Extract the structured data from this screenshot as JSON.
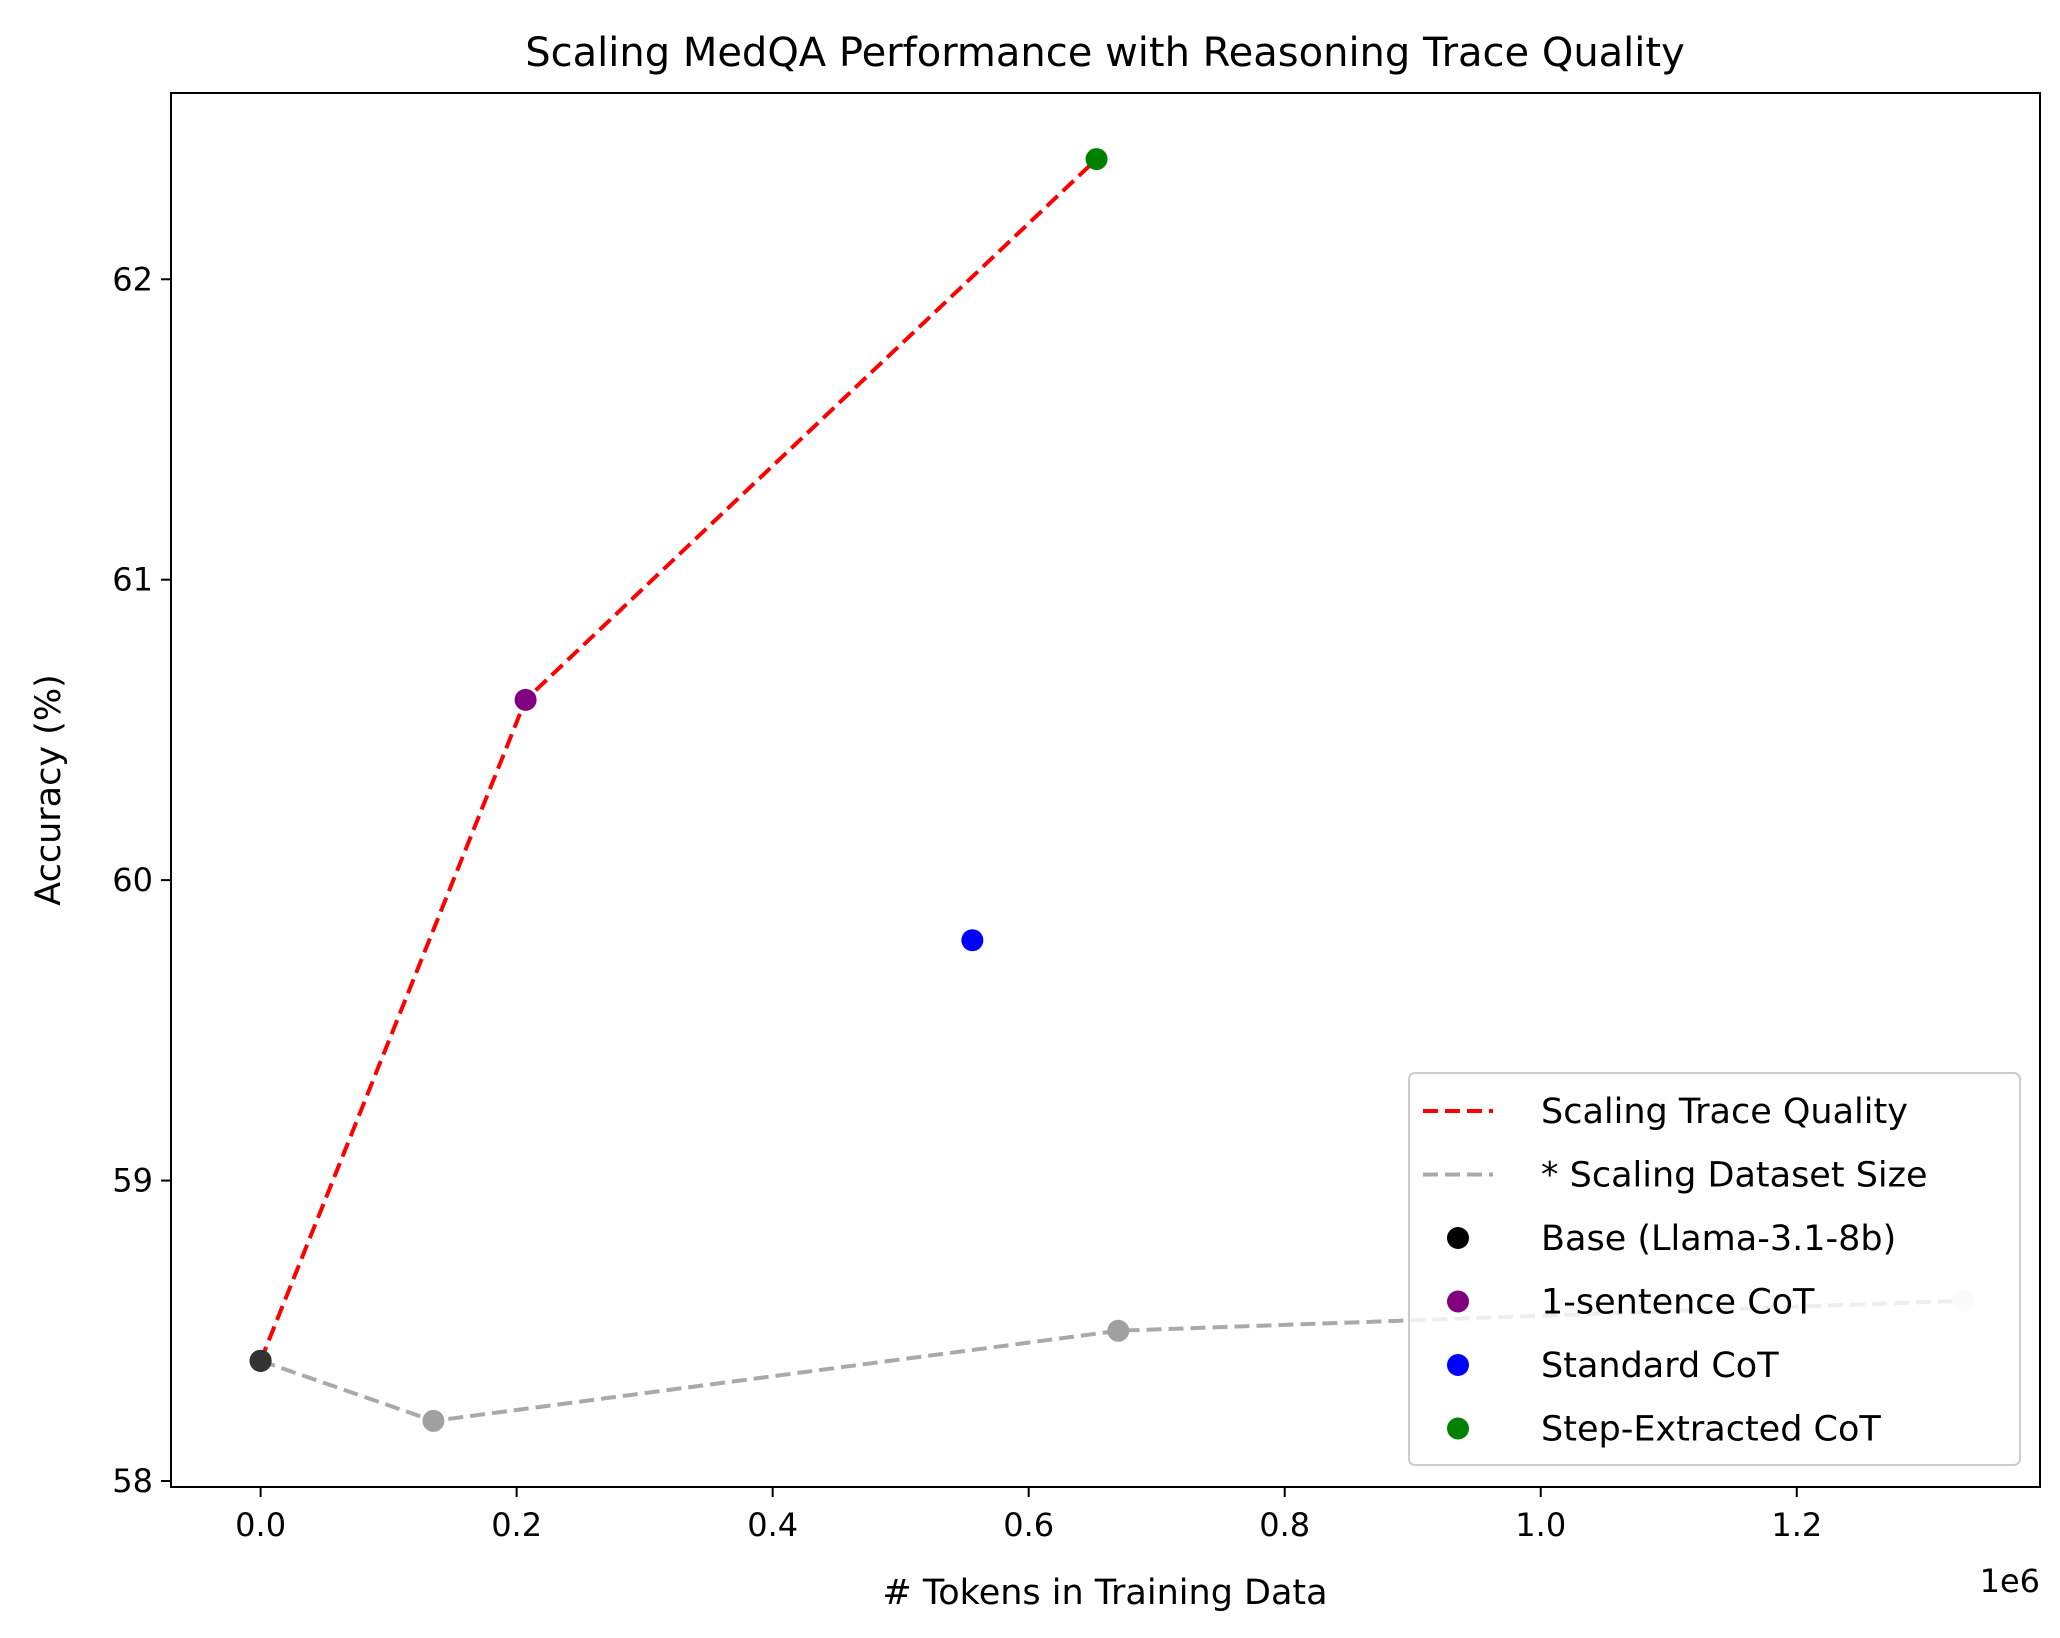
{
  "chart_data": {
    "type": "scatter",
    "title": "Scaling MedQA Performance with Reasoning Trace Quality",
    "xlabel": "# Tokens in Training Data",
    "ylabel": "Accuracy (%)",
    "x_offset_label": "1e6",
    "xlim": [
      -0.07,
      1.39
    ],
    "ylim": [
      57.98,
      62.62
    ],
    "x_ticks": [
      0.0,
      0.2,
      0.4,
      0.6,
      0.8,
      1.0,
      1.2
    ],
    "x_tick_labels": [
      "0.0",
      "0.2",
      "0.4",
      "0.6",
      "0.8",
      "1.0",
      "1.2"
    ],
    "y_ticks": [
      58,
      59,
      60,
      61,
      62
    ],
    "y_tick_labels": [
      "58",
      "59",
      "60",
      "61",
      "62"
    ],
    "grid": false,
    "legend_position": "lower-right",
    "lines": [
      {
        "name": "Scaling Trace Quality",
        "color": "#ff0000",
        "style": "dashed",
        "x": [
          0.0,
          0.207,
          0.653
        ],
        "y": [
          58.4,
          60.6,
          62.4
        ]
      },
      {
        "name": "* Scaling Dataset Size",
        "color": "#a9a9a9",
        "style": "dashed",
        "x": [
          0.0,
          0.135,
          0.67,
          1.33
        ],
        "y": [
          58.4,
          58.2,
          58.5,
          58.6
        ],
        "point_colors": [
          "#444444",
          "#a0a0a0",
          "#a0a0a0",
          "#e8e8e8"
        ]
      }
    ],
    "points": [
      {
        "name": "Base (Llama-3.1-8b)",
        "color": "#000000",
        "x": 0.0,
        "y": 58.4
      },
      {
        "name": "1-sentence CoT",
        "color": "#800080",
        "x": 0.207,
        "y": 60.6
      },
      {
        "name": "Standard CoT",
        "color": "#0000ff",
        "x": 0.556,
        "y": 59.8
      },
      {
        "name": "Step-Extracted CoT",
        "color": "#008000",
        "x": 0.653,
        "y": 62.4
      }
    ]
  }
}
